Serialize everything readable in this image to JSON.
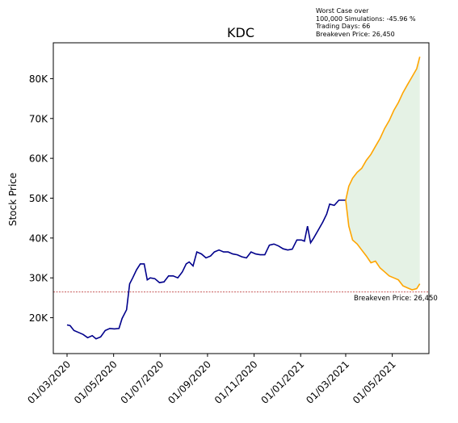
{
  "annotation": {
    "line1": "Worst Case over",
    "line2": "100,000 Simulations: -45.96 %",
    "line3": "Trading Days: 66",
    "line4": "Breakeven Price: 26,450"
  },
  "chart_data": {
    "type": "line",
    "title": "KDC",
    "xlabel": "",
    "ylabel": "Stock Price",
    "x_ticks": [
      "01/03/2020",
      "01/05/2020",
      "01/07/2020",
      "01/09/2020",
      "01/11/2020",
      "01/01/2021",
      "01/03/2021",
      "01/05/2021"
    ],
    "x_range": [
      "2020-02-12",
      "2021-06-18"
    ],
    "y_ticks": [
      "20K",
      "30K",
      "40K",
      "50K",
      "60K",
      "70K",
      "80K"
    ],
    "y_tick_values": [
      20000,
      30000,
      40000,
      50000,
      60000,
      70000,
      80000
    ],
    "ylim": [
      11000,
      89000
    ],
    "grid": false,
    "colors": {
      "history": "#00008b",
      "upper": "#ffa500",
      "lower": "#ffa500",
      "band_fill": "#e5f2e5",
      "breakeven": "#b22222"
    },
    "breakeven": {
      "value": 26450,
      "label": "Breakeven Price: 26,450"
    },
    "series": [
      {
        "role": "history",
        "points": [
          [
            "2020-03-01",
            18200
          ],
          [
            "2020-03-05",
            18000
          ],
          [
            "2020-03-10",
            16800
          ],
          [
            "2020-03-16",
            16300
          ],
          [
            "2020-03-22",
            15800
          ],
          [
            "2020-03-28",
            15000
          ],
          [
            "2020-04-03",
            15500
          ],
          [
            "2020-04-08",
            14700
          ],
          [
            "2020-04-14",
            15200
          ],
          [
            "2020-04-20",
            16800
          ],
          [
            "2020-04-26",
            17300
          ],
          [
            "2020-05-02",
            17200
          ],
          [
            "2020-05-08",
            17300
          ],
          [
            "2020-05-12",
            19800
          ],
          [
            "2020-05-18",
            22000
          ],
          [
            "2020-05-22",
            28500
          ],
          [
            "2020-05-26",
            30000
          ],
          [
            "2020-05-31",
            32000
          ],
          [
            "2020-06-05",
            33500
          ],
          [
            "2020-06-10",
            33500
          ],
          [
            "2020-06-14",
            29500
          ],
          [
            "2020-06-18",
            30000
          ],
          [
            "2020-06-24",
            29800
          ],
          [
            "2020-06-30",
            28800
          ],
          [
            "2020-07-06",
            29000
          ],
          [
            "2020-07-12",
            30500
          ],
          [
            "2020-07-18",
            30500
          ],
          [
            "2020-07-24",
            30000
          ],
          [
            "2020-07-30",
            31500
          ],
          [
            "2020-08-04",
            33500
          ],
          [
            "2020-08-08",
            34000
          ],
          [
            "2020-08-13",
            33000
          ],
          [
            "2020-08-18",
            36500
          ],
          [
            "2020-08-24",
            36000
          ],
          [
            "2020-08-30",
            35000
          ],
          [
            "2020-09-05",
            35500
          ],
          [
            "2020-09-10",
            36500
          ],
          [
            "2020-09-16",
            37000
          ],
          [
            "2020-09-22",
            36500
          ],
          [
            "2020-09-28",
            36500
          ],
          [
            "2020-10-04",
            36000
          ],
          [
            "2020-10-10",
            35800
          ],
          [
            "2020-10-16",
            35300
          ],
          [
            "2020-10-22",
            35000
          ],
          [
            "2020-10-28",
            36500
          ],
          [
            "2020-11-03",
            36000
          ],
          [
            "2020-11-09",
            35800
          ],
          [
            "2020-11-15",
            35800
          ],
          [
            "2020-11-21",
            38200
          ],
          [
            "2020-11-27",
            38500
          ],
          [
            "2020-12-03",
            38000
          ],
          [
            "2020-12-09",
            37300
          ],
          [
            "2020-12-15",
            37000
          ],
          [
            "2020-12-21",
            37200
          ],
          [
            "2020-12-27",
            39500
          ],
          [
            "2021-01-02",
            39500
          ],
          [
            "2021-01-06",
            39200
          ],
          [
            "2021-01-10",
            43000
          ],
          [
            "2021-01-14",
            38800
          ],
          [
            "2021-01-18",
            40000
          ],
          [
            "2021-01-24",
            42000
          ],
          [
            "2021-01-30",
            44000
          ],
          [
            "2021-02-04",
            46000
          ],
          [
            "2021-02-08",
            48500
          ],
          [
            "2021-02-14",
            48200
          ],
          [
            "2021-02-20",
            49500
          ],
          [
            "2021-03-01",
            49500
          ]
        ]
      },
      {
        "role": "upper",
        "points": [
          [
            "2021-03-01",
            49500
          ],
          [
            "2021-03-05",
            53000
          ],
          [
            "2021-03-10",
            55000
          ],
          [
            "2021-03-16",
            56500
          ],
          [
            "2021-03-22",
            57500
          ],
          [
            "2021-03-28",
            59500
          ],
          [
            "2021-04-03",
            61000
          ],
          [
            "2021-04-09",
            63000
          ],
          [
            "2021-04-15",
            65000
          ],
          [
            "2021-04-21",
            67500
          ],
          [
            "2021-04-27",
            69500
          ],
          [
            "2021-05-03",
            72000
          ],
          [
            "2021-05-09",
            74000
          ],
          [
            "2021-05-15",
            76500
          ],
          [
            "2021-05-21",
            78500
          ],
          [
            "2021-05-27",
            80500
          ],
          [
            "2021-06-02",
            82500
          ],
          [
            "2021-06-06",
            85500
          ]
        ]
      },
      {
        "role": "lower",
        "points": [
          [
            "2021-03-01",
            49500
          ],
          [
            "2021-03-05",
            43000
          ],
          [
            "2021-03-10",
            39500
          ],
          [
            "2021-03-16",
            38500
          ],
          [
            "2021-03-22",
            37000
          ],
          [
            "2021-03-28",
            35500
          ],
          [
            "2021-04-03",
            33800
          ],
          [
            "2021-04-09",
            34200
          ],
          [
            "2021-04-15",
            32500
          ],
          [
            "2021-04-21",
            31500
          ],
          [
            "2021-04-27",
            30500
          ],
          [
            "2021-05-03",
            30000
          ],
          [
            "2021-05-09",
            29500
          ],
          [
            "2021-05-15",
            28000
          ],
          [
            "2021-05-21",
            27500
          ],
          [
            "2021-05-27",
            27000
          ],
          [
            "2021-06-02",
            27300
          ],
          [
            "2021-06-06",
            28500
          ]
        ]
      }
    ]
  }
}
